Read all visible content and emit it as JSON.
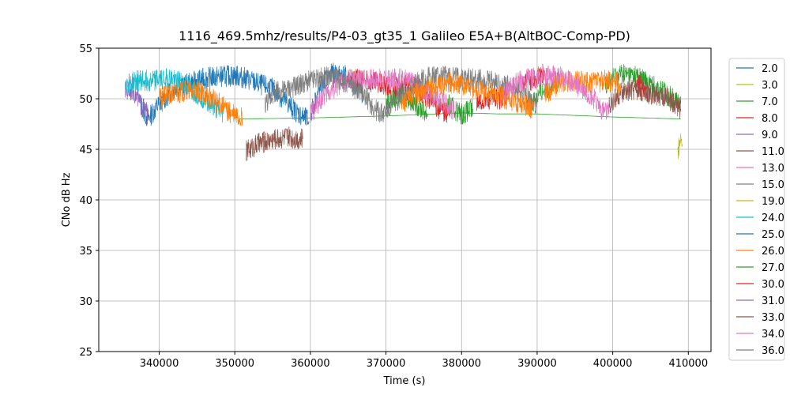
{
  "chart_data": {
    "type": "line",
    "title": "1116_469.5mhz/results/P4-03_gt35_1 Galileo E5A+B(AltBOC-Comp-PD)",
    "xlabel": "Time (s)",
    "ylabel": "CNo dB Hz",
    "xlim": [
      332000,
      413000
    ],
    "ylim": [
      25,
      55
    ],
    "xticks": [
      340000,
      350000,
      360000,
      370000,
      380000,
      390000,
      400000,
      410000
    ],
    "xtick_labels": [
      "340000",
      "350000",
      "360000",
      "370000",
      "380000",
      "390000",
      "400000",
      "410000"
    ],
    "yticks": [
      25,
      30,
      35,
      40,
      45,
      50,
      55
    ],
    "ytick_labels": [
      "25",
      "30",
      "35",
      "40",
      "45",
      "50",
      "55"
    ],
    "grid": true,
    "legend_position": "outside-right",
    "series": [
      {
        "name": "2.0",
        "color": "#1f77b4",
        "segments": [
          [
            [
              337500,
              49.5
            ],
            [
              338500,
              48.0
            ],
            [
              340000,
              49.5
            ],
            [
              342000,
              51.0
            ],
            [
              344000,
              51.5
            ],
            [
              346000,
              52.0
            ],
            [
              348000,
              52.2
            ],
            [
              350000,
              52.3
            ],
            [
              351500,
              52.0
            ],
            [
              353000,
              51.5
            ],
            [
              355000,
              51.0
            ],
            [
              357000,
              49.5
            ],
            [
              358500,
              48.5
            ],
            [
              359800,
              47.8
            ]
          ],
          [
            [
              360000,
              48.5
            ],
            [
              361000,
              50.5
            ],
            [
              362000,
              52.0
            ],
            [
              363000,
              52.5
            ],
            [
              364500,
              52.3
            ],
            [
              366000,
              51.5
            ],
            [
              367000,
              50.5
            ]
          ]
        ]
      },
      {
        "name": "3.0",
        "color": "#bcbd22",
        "segments": [
          [
            [
              408600,
              44.8
            ],
            [
              408800,
              45.5
            ],
            [
              409000,
              46.0
            ],
            [
              409200,
              45.5
            ]
          ]
        ]
      },
      {
        "name": "7.0",
        "color": "#2ca02c",
        "segments": [
          [
            [
              350500,
              48.0
            ],
            [
              360000,
              48.1
            ],
            [
              370000,
              48.3
            ],
            [
              380000,
              48.6
            ],
            [
              385000,
              48.5
            ],
            [
              390000,
              48.5
            ],
            [
              400000,
              48.2
            ],
            [
              409000,
              48.0
            ]
          ],
          [
            [
              370000,
              49.5
            ],
            [
              372000,
              50.5
            ],
            [
              374000,
              49.5
            ],
            [
              375500,
              48.5
            ]
          ],
          [
            [
              378000,
              49.5
            ],
            [
              380000,
              48.5
            ],
            [
              381500,
              49.0
            ]
          ],
          [
            [
              389000,
              49.5
            ],
            [
              391000,
              51.0
            ],
            [
              393000,
              51.8
            ]
          ],
          [
            [
              399000,
              51.5
            ],
            [
              401000,
              52.5
            ],
            [
              403000,
              52.3
            ],
            [
              405000,
              51.5
            ],
            [
              407000,
              50.5
            ],
            [
              409000,
              49.5
            ]
          ]
        ]
      },
      {
        "name": "8.0",
        "color": "#d62728",
        "segments": [
          [
            [
              365000,
              52.0
            ],
            [
              367000,
              51.8
            ],
            [
              369000,
              51.5
            ],
            [
              371000,
              51.0
            ],
            [
              373000,
              51.5
            ],
            [
              375000,
              50.5
            ],
            [
              377000,
              49.0
            ],
            [
              378500,
              48.5
            ]
          ],
          [
            [
              382000,
              49.5
            ],
            [
              383500,
              50.0
            ],
            [
              385000,
              50.0
            ],
            [
              386000,
              50.5
            ]
          ],
          [
            [
              388000,
              51.5
            ],
            [
              390000,
              52.0
            ],
            [
              391000,
              52.5
            ]
          ],
          [
            [
              403000,
              51.5
            ],
            [
              404500,
              51.0
            ]
          ]
        ]
      },
      {
        "name": "9.0",
        "color": "#9467bd",
        "segments": [
          [
            [
              335500,
              50.8
            ],
            [
              336500,
              51.0
            ],
            [
              337500,
              49.5
            ],
            [
              338500,
              48.5
            ]
          ]
        ]
      },
      {
        "name": "11.0",
        "color": "#8c564b",
        "segments": [
          [
            [
              351500,
              44.8
            ],
            [
              353000,
              45.5
            ],
            [
              355000,
              46.0
            ],
            [
              357000,
              46.2
            ],
            [
              359000,
              46.0
            ]
          ],
          [
            [
              399500,
              49.5
            ],
            [
              401000,
              50.5
            ],
            [
              403000,
              51.0
            ],
            [
              405000,
              50.5
            ],
            [
              407000,
              50.2
            ],
            [
              409000,
              49.0
            ]
          ]
        ]
      },
      {
        "name": "13.0",
        "color": "#e377c2",
        "segments": [
          [
            [
              360000,
              48.5
            ],
            [
              362000,
              50.5
            ],
            [
              364000,
              51.5
            ],
            [
              366000,
              51.8
            ],
            [
              368000,
              52.0
            ],
            [
              370000,
              51.8
            ],
            [
              372000,
              52.0
            ],
            [
              374000,
              51.5
            ],
            [
              376000,
              50.5
            ],
            [
              378000,
              49.5
            ],
            [
              379000,
              48.8
            ]
          ]
        ]
      },
      {
        "name": "15.0",
        "color": "#7f7f7f",
        "segments": [
          [
            [
              354000,
              49.5
            ],
            [
              355000,
              50.5
            ],
            [
              357000,
              51.0
            ],
            [
              359000,
              51.5
            ],
            [
              361000,
              52.0
            ],
            [
              363000,
              52.2
            ],
            [
              365000,
              51.5
            ],
            [
              367000,
              50.5
            ],
            [
              368500,
              49.0
            ],
            [
              369500,
              48.5
            ],
            [
              371000,
              49.5
            ],
            [
              373000,
              51.0
            ],
            [
              375000,
              52.0
            ],
            [
              377000,
              52.3
            ],
            [
              379000,
              52.2
            ],
            [
              381000,
              52.0
            ],
            [
              383000,
              51.8
            ],
            [
              385000,
              51.5
            ],
            [
              387000,
              51.0
            ],
            [
              389000,
              50.0
            ],
            [
              390000,
              49.5
            ]
          ]
        ]
      },
      {
        "name": "19.0",
        "color": "#bcbd22",
        "segments": []
      },
      {
        "name": "24.0",
        "color": "#17becf",
        "segments": [
          [
            [
              335500,
              51.5
            ],
            [
              337500,
              51.8
            ],
            [
              339000,
              51.8
            ],
            [
              341000,
              52.0
            ],
            [
              342500,
              51.8
            ],
            [
              344000,
              51.0
            ],
            [
              346000,
              50.0
            ],
            [
              347500,
              49.0
            ],
            [
              348500,
              48.5
            ]
          ]
        ]
      },
      {
        "name": "25.0",
        "color": "#1f77b4",
        "segments": []
      },
      {
        "name": "26.0",
        "color": "#ff7f0e",
        "segments": [
          [
            [
              340000,
              50.0
            ],
            [
              342000,
              50.5
            ],
            [
              344000,
              50.8
            ],
            [
              346000,
              50.5
            ],
            [
              348000,
              49.5
            ],
            [
              349500,
              48.5
            ],
            [
              351000,
              48.0
            ]
          ],
          [
            [
              372000,
              49.5
            ],
            [
              374000,
              50.5
            ],
            [
              376000,
              51.0
            ],
            [
              378000,
              51.5
            ],
            [
              380000,
              51.5
            ],
            [
              382000,
              51.0
            ],
            [
              384000,
              50.5
            ],
            [
              386000,
              50.0
            ],
            [
              388000,
              49.5
            ],
            [
              389500,
              49.0
            ]
          ],
          [
            [
              391000,
              50.5
            ],
            [
              393000,
              51.5
            ],
            [
              395000,
              51.8
            ],
            [
              397000,
              51.5
            ],
            [
              399000,
              51.8
            ],
            [
              401000,
              51.5
            ]
          ]
        ]
      },
      {
        "name": "27.0",
        "color": "#2ca02c",
        "segments": []
      },
      {
        "name": "30.0",
        "color": "#d62728",
        "segments": []
      },
      {
        "name": "31.0",
        "color": "#9467bd",
        "segments": []
      },
      {
        "name": "33.0",
        "color": "#8c564b",
        "segments": []
      },
      {
        "name": "34.0",
        "color": "#e377c2",
        "segments": [
          [
            [
              385500,
              50.5
            ],
            [
              387000,
              51.5
            ],
            [
              389000,
              52.0
            ],
            [
              391000,
              52.3
            ],
            [
              393000,
              52.2
            ],
            [
              395000,
              51.5
            ],
            [
              397000,
              50.5
            ],
            [
              398500,
              49.0
            ],
            [
              399500,
              48.5
            ]
          ]
        ]
      },
      {
        "name": "36.0",
        "color": "#7f7f7f",
        "segments": []
      }
    ]
  }
}
